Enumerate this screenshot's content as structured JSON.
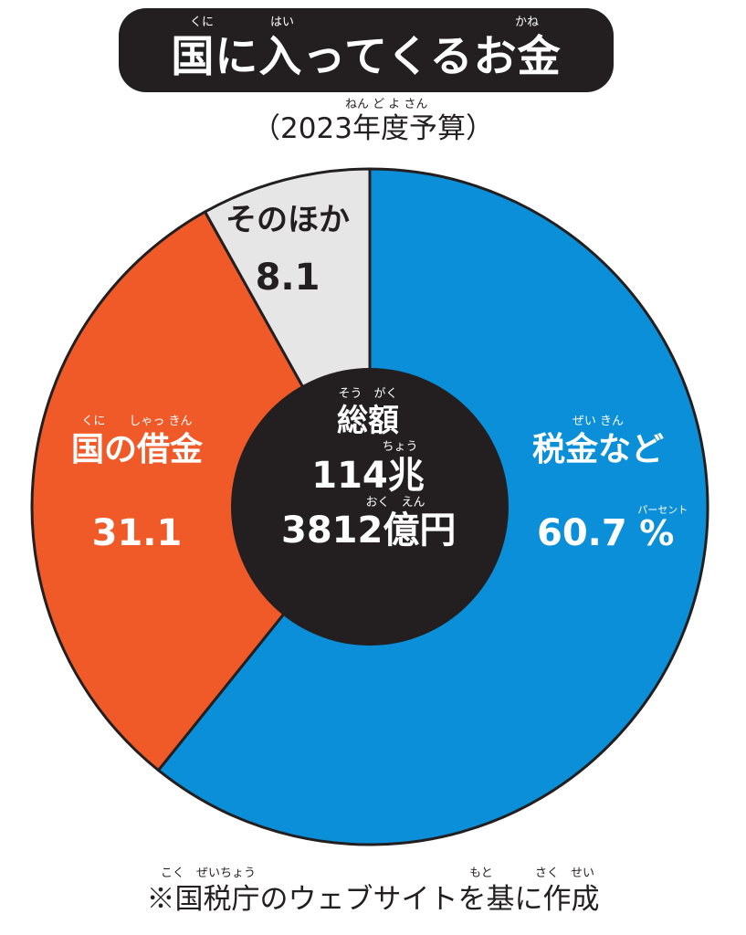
{
  "header": {
    "title": "国に入ってくるお金",
    "title_ruby": {
      "kuni": "くに",
      "hai": "はい",
      "kane": "かね"
    },
    "subtitle": "（2023年度予算）",
    "subtitle_ruby": "ねん ど よ さん"
  },
  "chart_data": {
    "type": "pie",
    "title": "国に入ってくるお金",
    "subtitle": "（2023年度予算）",
    "unit": "%",
    "slices": [
      {
        "name": "税金など",
        "value": 60.7,
        "value_label": "60.7",
        "ruby": "ぜい きん",
        "color": "#0a8fd8"
      },
      {
        "name": "国の借金",
        "value": 31.1,
        "value_label": "31.1",
        "ruby": "くに　　しゃっ きん",
        "color": "#f05a28"
      },
      {
        "name": "そのほか",
        "value": 8.1,
        "value_label": "8.1",
        "color": "#e6e6e7"
      }
    ],
    "percent_sign": "%",
    "percent_ruby": "パーセント",
    "center": {
      "heading": "総額",
      "heading_ruby": "そう　がく",
      "line1": "114兆",
      "line1_ruby": "ちょう",
      "line2": "3812億円",
      "line2_ruby": "おく　えん"
    },
    "colors": {
      "center": "#231f20",
      "outline": "#231f20"
    }
  },
  "footer": {
    "text": "※国税庁のウェブサイトを基に作成",
    "ruby_left": "こく　ぜいちょう",
    "ruby_moto": "もと",
    "ruby_right": "さく　せい"
  }
}
